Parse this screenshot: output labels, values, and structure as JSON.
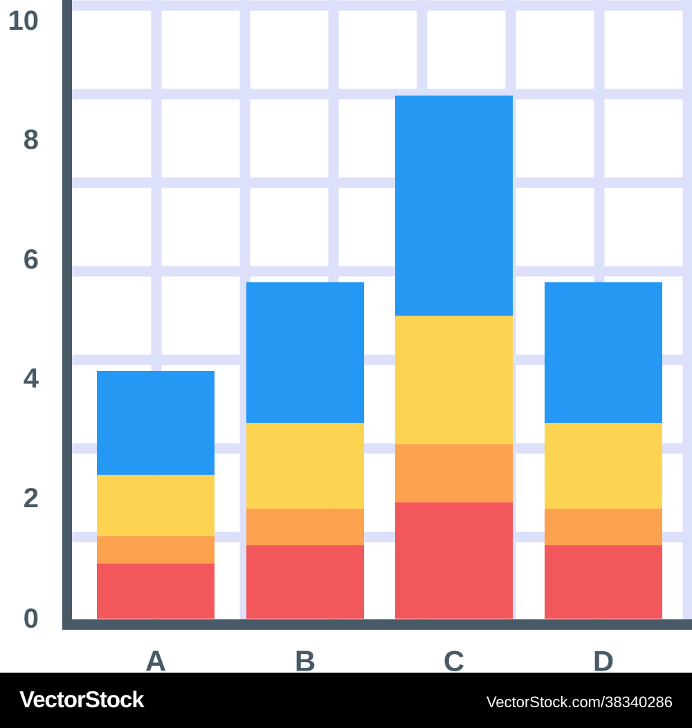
{
  "chart_data": {
    "type": "bar",
    "stacked": true,
    "categories": [
      "A",
      "B",
      "C",
      "D"
    ],
    "series": [
      {
        "values": [
          0.9,
          1.2,
          1.9,
          1.2
        ],
        "color": "#F2575B"
      },
      {
        "values": [
          0.45,
          0.6,
          0.95,
          0.6
        ],
        "color": "#FCA14E"
      },
      {
        "values": [
          1.0,
          1.4,
          2.1,
          1.4
        ],
        "color": "#FDD452"
      },
      {
        "values": [
          1.7,
          2.3,
          3.6,
          2.3
        ],
        "color": "#2498F3"
      }
    ],
    "yticks": [
      "0",
      "2",
      "4",
      "6",
      "8",
      "10"
    ],
    "ylim": [
      0,
      10
    ],
    "grid": true,
    "colors": {
      "grid": "#DCE0FA",
      "axis": "#475A65",
      "label": "#475A65"
    }
  },
  "footer": {
    "brand": "VectorStock",
    "reference": "VectorStock.com/38340286"
  }
}
